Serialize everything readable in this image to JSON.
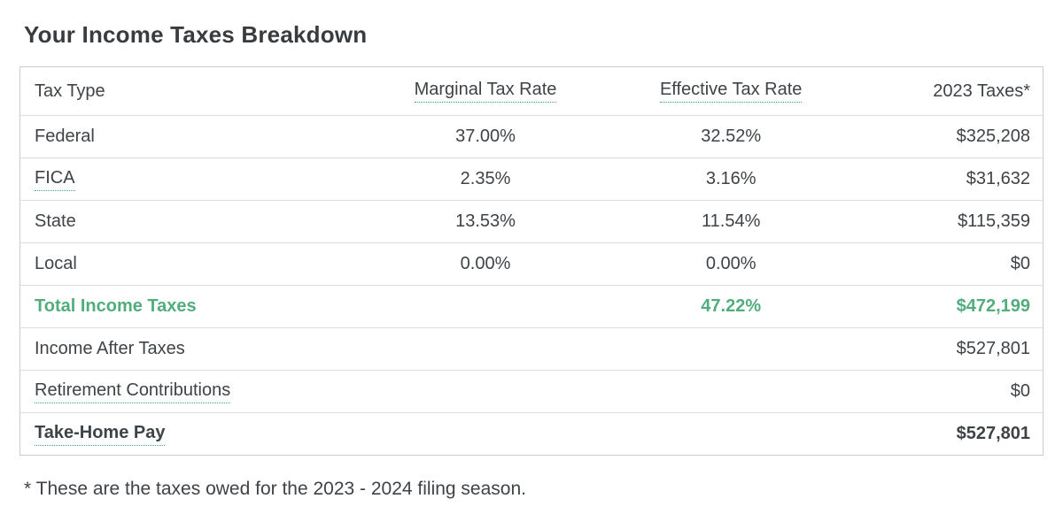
{
  "page": {
    "title": "Your Income Taxes Breakdown",
    "footnote": "* These are the taxes owed for the 2023 - 2024 filing season."
  },
  "table": {
    "columns": [
      {
        "label": "Tax Type",
        "tooltip_underline": false
      },
      {
        "label": "Marginal Tax Rate",
        "tooltip_underline": true
      },
      {
        "label": "Effective Tax Rate",
        "tooltip_underline": true
      },
      {
        "label": "2023 Taxes*",
        "tooltip_underline": false
      }
    ],
    "rows": [
      {
        "label": "Federal",
        "marginal": "37.00%",
        "effective": "32.52%",
        "amount": "$325,208"
      },
      {
        "label": "FICA",
        "marginal": "2.35%",
        "effective": "3.16%",
        "amount": "$31,632"
      },
      {
        "label": "State",
        "marginal": "13.53%",
        "effective": "11.54%",
        "amount": "$115,359"
      },
      {
        "label": "Local",
        "marginal": "0.00%",
        "effective": "0.00%",
        "amount": "$0"
      },
      {
        "label": "Total Income Taxes",
        "marginal": "",
        "effective": "47.22%",
        "amount": "$472,199"
      },
      {
        "label": "Income After Taxes",
        "marginal": "",
        "effective": "",
        "amount": "$527,801"
      },
      {
        "label": "Retirement Contributions",
        "marginal": "",
        "effective": "",
        "amount": "$0"
      },
      {
        "label": "Take-Home Pay",
        "marginal": "",
        "effective": "",
        "amount": "$527,801"
      }
    ]
  },
  "colors": {
    "accent_green": "#52ad7d",
    "tooltip_underline_teal": "#44a087",
    "body_text": "#3e4347",
    "table_border": "#cbcbcb",
    "row_divider": "#dcdcdc"
  }
}
